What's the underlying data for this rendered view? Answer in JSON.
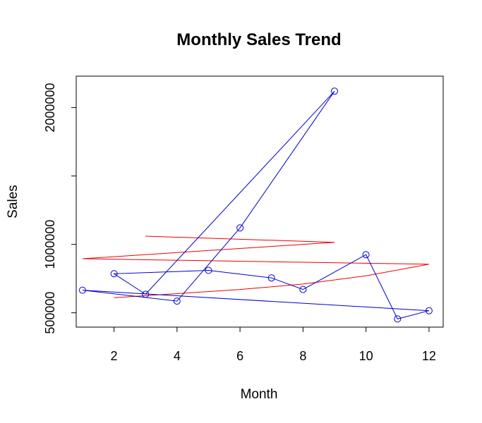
{
  "chart_data": {
    "type": "line",
    "title": "Monthly Sales Trend",
    "xlabel": "Month",
    "ylabel": "Sales",
    "xlim": [
      0.8,
      12.45
    ],
    "ylim": [
      395000,
      2230000
    ],
    "x_ticks": [
      2,
      4,
      6,
      8,
      10,
      12
    ],
    "x_tick_labels": [
      "2",
      "4",
      "6",
      "8",
      "10",
      "12"
    ],
    "y_ticks": [
      500000,
      1000000,
      1500000,
      2000000
    ],
    "y_tick_labels": [
      "500000",
      "1000000",
      "",
      "2000000"
    ],
    "grid": false,
    "legend": "none",
    "series": [
      {
        "style": "line with open circle markers",
        "color": "#0000CD",
        "x": [
          9,
          6,
          4,
          1,
          12,
          11,
          10,
          8,
          7,
          5,
          2,
          3,
          9
        ],
        "y": [
          2120000,
          1120000,
          585000,
          665000,
          515000,
          455000,
          925000,
          670000,
          755000,
          810000,
          785000,
          635000,
          2120000
        ]
      },
      {
        "style": "line",
        "color": "#EE0000",
        "x": [
          2,
          4,
          6,
          8,
          10,
          12,
          1,
          9,
          3
        ],
        "y": [
          610000,
          640000,
          670000,
          710000,
          770000,
          855000,
          895000,
          1015000,
          1060000
        ]
      }
    ]
  }
}
